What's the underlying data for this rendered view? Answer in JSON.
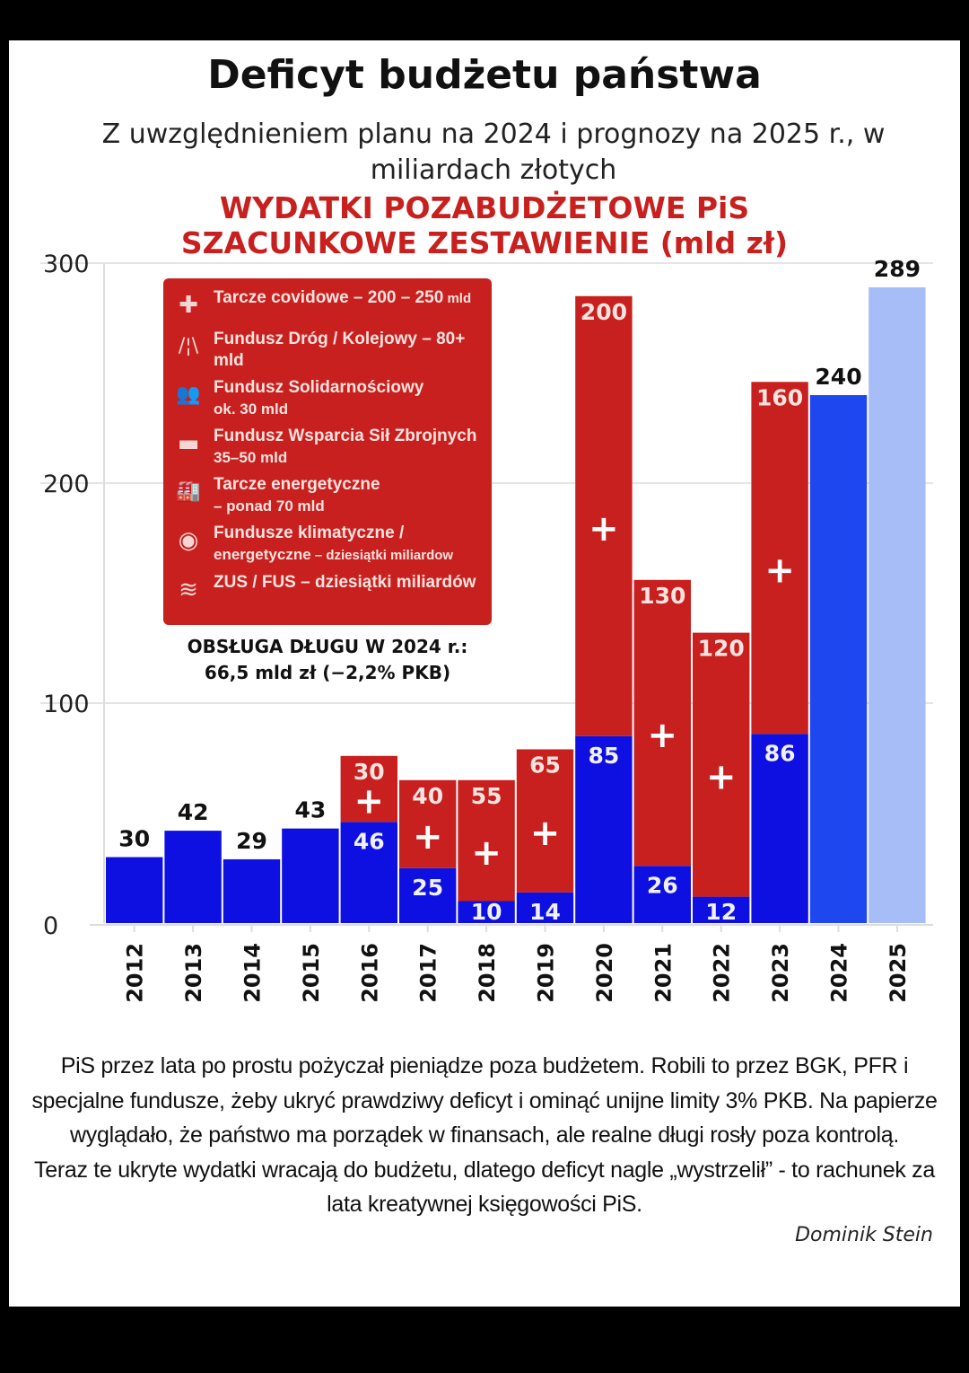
{
  "title": "Deficyt budżetu państwa",
  "subtitle": "Z uwzględnieniem planu na 2024 i prognozy na 2025 r., w miliardach złotych",
  "red_title_line1": "WYDATKI POZABUDŻETOWE PiS",
  "red_title_line2": "SZACUNKOWE ZESTAWIENIE (mld zł)",
  "legend": [
    {
      "icon": "shield-cross-icon",
      "glyph": "✚",
      "main": "Tarcze covidowe – 200 – 250",
      "small": " mld"
    },
    {
      "icon": "road-icon",
      "glyph": "/¦\\",
      "main": "Fundusz Dróg / Kolejowy – 80+ mld",
      "small": ""
    },
    {
      "icon": "people-icon",
      "glyph": "👥",
      "main": "Fundusz Solidarnościowy",
      "sub": "ok. 30 mld"
    },
    {
      "icon": "tank-icon",
      "glyph": "▬",
      "main": "Fundusz Wsparcia Sił Zbrojnych",
      "sub": "35–50 mld"
    },
    {
      "icon": "factory-leaf-icon",
      "glyph": "🏭",
      "main": "Tarcze energetyczne",
      "sub": "– ponad 70 mld"
    },
    {
      "icon": "leaf-circle-icon",
      "glyph": "◉",
      "main": "Fundusze klimatyczne /",
      "sub": "energetyczne",
      "small": " – dziesiątki miliardow"
    },
    {
      "icon": "money-stack-icon",
      "glyph": "≋",
      "main": "ZUS / FUS – dziesiątki miliardów",
      "small": ""
    }
  ],
  "debt_note_line1": "OBSŁUGA DŁUGU W 2024 r.:",
  "debt_note_line2": "66,5 mld zł (−2,2% PKB)",
  "chart_data": {
    "type": "bar",
    "stacked": true,
    "categories": [
      "2012",
      "2013",
      "2014",
      "2015",
      "2016",
      "2017",
      "2018",
      "2019",
      "2020",
      "2021",
      "2022",
      "2023",
      "2024",
      "2025"
    ],
    "series": [
      {
        "values": [
          30,
          42,
          29,
          43,
          46,
          25,
          10,
          14,
          85,
          26,
          12,
          86,
          240,
          289
        ],
        "color": "#0d10e0"
      },
      {
        "values": [
          0,
          0,
          0,
          0,
          30,
          40,
          55,
          65,
          200,
          130,
          120,
          160,
          0,
          0
        ],
        "color": "#c8201e"
      }
    ],
    "segment_marker": "+",
    "highlight_colors": {
      "2024": "#1f47f0",
      "2025": "#a6bdf8"
    },
    "yticks": [
      0,
      100,
      200,
      300
    ],
    "ylim": [
      0,
      300
    ],
    "grid": true
  },
  "paragraph": "PiS przez lata po prostu pożyczał pieniądze poza budżetem. Robili to przez BGK, PFR i specjalne fundusze, żeby ukryć prawdziwy deficyt i ominąć unijne limity 3% PKB. Na papierze wyglądało, że państwo ma porządek w finansach, ale realne długi rosły poza kontrolą.",
  "paragraph2": "Teraz te ukryte wydatki wracają do budżetu, dlatego deficyt nagle „wystrzelił” - to rachunek za lata kreatywnej księgowości PiS.",
  "author": "Dominik Stein"
}
